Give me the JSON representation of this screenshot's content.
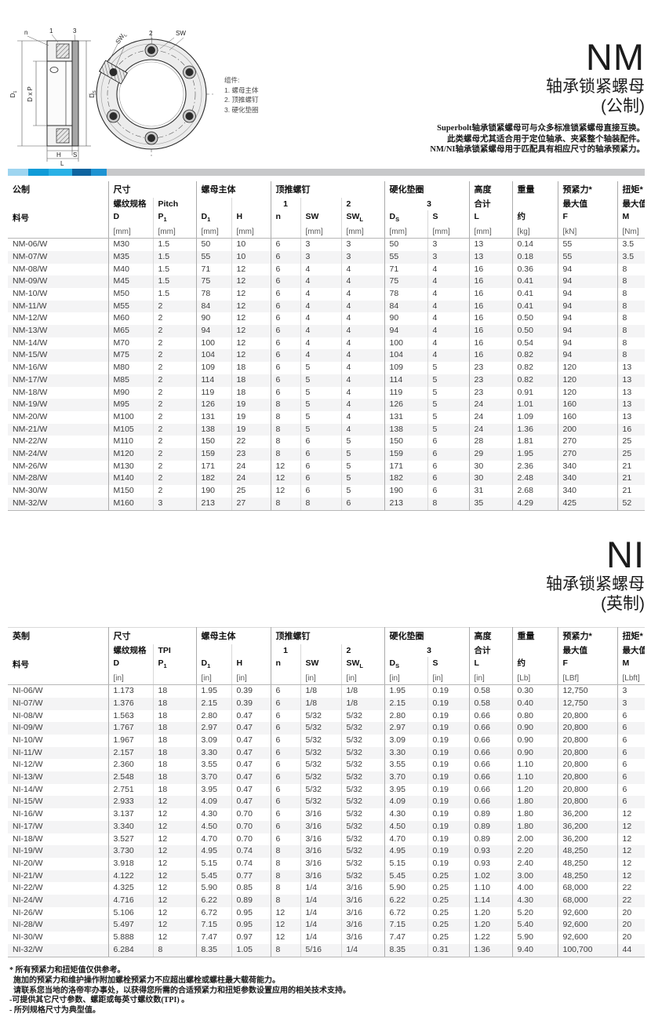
{
  "brand_bar": {
    "colors": [
      "#9ed5f0",
      "#0f9bd7",
      "#29b1e6",
      "#0e649f",
      "#1e93d2"
    ],
    "gray": "#c7c8ca"
  },
  "drawing": {
    "legend_title": "组件:",
    "legend_items": [
      "1. 螺母主体",
      "2. 顶推螺钉",
      "3. 硬化垫圈"
    ],
    "labels": {
      "n": "n",
      "one": "1",
      "three": "3",
      "d1": {
        "b": "D",
        "s": "1"
      },
      "dxp": "D x P",
      "ds": {
        "b": "D",
        "s": "S"
      },
      "h": "H",
      "s": "S",
      "l": "L",
      "swl": {
        "b": "SW",
        "s": "L"
      },
      "two": "2",
      "sw": "SW"
    }
  },
  "nm": {
    "title": "NM",
    "subtitle": "轴承锁紧螺母",
    "variant": "(公制)",
    "description": [
      "Superbolt轴承锁紧螺母可与众多标准锁紧螺母直接互换。",
      "此类螺母尤其适合用于定位轴承、夹紧整个轴装配件。",
      "NM/NI轴承锁紧螺母用于匹配具有相应尺寸的轴承预紧力。"
    ],
    "table": {
      "corner": "公制",
      "part_label": "料号",
      "groups": {
        "size": "尺寸",
        "body": "螺母主体",
        "jack": "顶推螺钉",
        "washer": "硬化垫圈",
        "height": "高度",
        "weight": "重量",
        "preload": "预紧力*",
        "torque": "扭矩*"
      },
      "sub": {
        "thread": "螺纹规格",
        "pitch": "Pitch",
        "one": "1",
        "two": "2",
        "three": "3",
        "total": "合计",
        "max_f": "最大值",
        "max_m": "最大值"
      },
      "symbols": {
        "D": {
          "b": "D",
          "s": ""
        },
        "P": {
          "b": "P",
          "s": "1"
        },
        "D1": {
          "b": "D",
          "s": "1"
        },
        "H": {
          "b": "H",
          "s": ""
        },
        "n": {
          "b": "n",
          "s": ""
        },
        "SW": {
          "b": "SW",
          "s": ""
        },
        "SWL": {
          "b": "SW",
          "s": "L"
        },
        "DS": {
          "b": "D",
          "s": "S"
        },
        "S": {
          "b": "S",
          "s": ""
        },
        "L": {
          "b": "L",
          "s": ""
        },
        "approx": {
          "b": "约",
          "s": ""
        },
        "F": {
          "b": "F",
          "s": ""
        },
        "M": {
          "b": "M",
          "s": ""
        }
      },
      "units": [
        "",
        "[mm]",
        "[mm]",
        "[mm]",
        "[mm]",
        "",
        "[mm]",
        "[mm]",
        "[mm]",
        "[mm]",
        "[mm]",
        "[kg]",
        "[kN]",
        "[Nm]"
      ],
      "rows": [
        [
          "NM-06/W",
          "M30",
          "1.5",
          "50",
          "10",
          "6",
          "3",
          "3",
          "50",
          "3",
          "13",
          "0.14",
          "55",
          "3.5"
        ],
        [
          "NM-07/W",
          "M35",
          "1.5",
          "55",
          "10",
          "6",
          "3",
          "3",
          "55",
          "3",
          "13",
          "0.18",
          "55",
          "3.5"
        ],
        [
          "NM-08/W",
          "M40",
          "1.5",
          "71",
          "12",
          "6",
          "4",
          "4",
          "71",
          "4",
          "16",
          "0.36",
          "94",
          "8"
        ],
        [
          "NM-09/W",
          "M45",
          "1.5",
          "75",
          "12",
          "6",
          "4",
          "4",
          "75",
          "4",
          "16",
          "0.41",
          "94",
          "8"
        ],
        [
          "NM-10/W",
          "M50",
          "1.5",
          "78",
          "12",
          "6",
          "4",
          "4",
          "78",
          "4",
          "16",
          "0.41",
          "94",
          "8"
        ],
        [
          "NM-11/W",
          "M55",
          "2",
          "84",
          "12",
          "6",
          "4",
          "4",
          "84",
          "4",
          "16",
          "0.41",
          "94",
          "8"
        ],
        [
          "NM-12/W",
          "M60",
          "2",
          "90",
          "12",
          "6",
          "4",
          "4",
          "90",
          "4",
          "16",
          "0.50",
          "94",
          "8"
        ],
        [
          "NM-13/W",
          "M65",
          "2",
          "94",
          "12",
          "6",
          "4",
          "4",
          "94",
          "4",
          "16",
          "0.50",
          "94",
          "8"
        ],
        [
          "NM-14/W",
          "M70",
          "2",
          "100",
          "12",
          "6",
          "4",
          "4",
          "100",
          "4",
          "16",
          "0.54",
          "94",
          "8"
        ],
        [
          "NM-15/W",
          "M75",
          "2",
          "104",
          "12",
          "6",
          "4",
          "4",
          "104",
          "4",
          "16",
          "0.82",
          "94",
          "8"
        ],
        [
          "NM-16/W",
          "M80",
          "2",
          "109",
          "18",
          "6",
          "5",
          "4",
          "109",
          "5",
          "23",
          "0.82",
          "120",
          "13"
        ],
        [
          "NM-17/W",
          "M85",
          "2",
          "114",
          "18",
          "6",
          "5",
          "4",
          "114",
          "5",
          "23",
          "0.82",
          "120",
          "13"
        ],
        [
          "NM-18/W",
          "M90",
          "2",
          "119",
          "18",
          "6",
          "5",
          "4",
          "119",
          "5",
          "23",
          "0.91",
          "120",
          "13"
        ],
        [
          "NM-19/W",
          "M95",
          "2",
          "126",
          "19",
          "8",
          "5",
          "4",
          "126",
          "5",
          "24",
          "1.01",
          "160",
          "13"
        ],
        [
          "NM-20/W",
          "M100",
          "2",
          "131",
          "19",
          "8",
          "5",
          "4",
          "131",
          "5",
          "24",
          "1.09",
          "160",
          "13"
        ],
        [
          "NM-21/W",
          "M105",
          "2",
          "138",
          "19",
          "8",
          "5",
          "4",
          "138",
          "5",
          "24",
          "1.36",
          "200",
          "16"
        ],
        [
          "NM-22/W",
          "M110",
          "2",
          "150",
          "22",
          "8",
          "6",
          "5",
          "150",
          "6",
          "28",
          "1.81",
          "270",
          "25"
        ],
        [
          "NM-24/W",
          "M120",
          "2",
          "159",
          "23",
          "8",
          "6",
          "5",
          "159",
          "6",
          "29",
          "1.95",
          "270",
          "25"
        ],
        [
          "NM-26/W",
          "M130",
          "2",
          "171",
          "24",
          "12",
          "6",
          "5",
          "171",
          "6",
          "30",
          "2.36",
          "340",
          "21"
        ],
        [
          "NM-28/W",
          "M140",
          "2",
          "182",
          "24",
          "12",
          "6",
          "5",
          "182",
          "6",
          "30",
          "2.48",
          "340",
          "21"
        ],
        [
          "NM-30/W",
          "M150",
          "2",
          "190",
          "25",
          "12",
          "6",
          "5",
          "190",
          "6",
          "31",
          "2.68",
          "340",
          "21"
        ],
        [
          "NM-32/W",
          "M160",
          "3",
          "213",
          "27",
          "8",
          "8",
          "6",
          "213",
          "8",
          "35",
          "4.29",
          "425",
          "52"
        ]
      ]
    }
  },
  "ni": {
    "title": "NI",
    "subtitle": "轴承锁紧螺母",
    "variant": "(英制)",
    "table": {
      "corner": "英制",
      "part_label": "料号",
      "groups": {
        "size": "尺寸",
        "body": "螺母主体",
        "jack": "顶推螺钉",
        "washer": "硬化垫圈",
        "height": "高度",
        "weight": "重量",
        "preload": "预紧力*",
        "torque": "扭矩*"
      },
      "sub": {
        "thread": "螺纹规格",
        "pitch": "TPI",
        "one": "1",
        "two": "2",
        "three": "3",
        "total": "合计",
        "max_f": "最大值",
        "max_m": "最大值"
      },
      "symbols": {
        "D": {
          "b": "D",
          "s": ""
        },
        "P": {
          "b": "P",
          "s": "1"
        },
        "D1": {
          "b": "D",
          "s": "1"
        },
        "H": {
          "b": "H",
          "s": ""
        },
        "n": {
          "b": "n",
          "s": ""
        },
        "SW": {
          "b": "SW",
          "s": ""
        },
        "SWL": {
          "b": "SW",
          "s": "L"
        },
        "DS": {
          "b": "D",
          "s": "S"
        },
        "S": {
          "b": "S",
          "s": ""
        },
        "L": {
          "b": "L",
          "s": ""
        },
        "approx": {
          "b": "约",
          "s": ""
        },
        "F": {
          "b": "F",
          "s": ""
        },
        "M": {
          "b": "M",
          "s": ""
        }
      },
      "units": [
        "",
        "[in]",
        "",
        "[in]",
        "[in]",
        "",
        "[in]",
        "[in]",
        "[in]",
        "[in]",
        "[in]",
        "[Lb]",
        "[LBf]",
        "[Lbft]"
      ],
      "rows": [
        [
          "NI-06/W",
          "1.173",
          "18",
          "1.95",
          "0.39",
          "6",
          "1/8",
          "1/8",
          "1.95",
          "0.19",
          "0.58",
          "0.30",
          "12,750",
          "3"
        ],
        [
          "NI-07/W",
          "1.376",
          "18",
          "2.15",
          "0.39",
          "6",
          "1/8",
          "1/8",
          "2.15",
          "0.19",
          "0.58",
          "0.40",
          "12,750",
          "3"
        ],
        [
          "NI-08/W",
          "1.563",
          "18",
          "2.80",
          "0.47",
          "6",
          "5/32",
          "5/32",
          "2.80",
          "0.19",
          "0.66",
          "0.80",
          "20,800",
          "6"
        ],
        [
          "NI-09/W",
          "1.767",
          "18",
          "2.97",
          "0.47",
          "6",
          "5/32",
          "5/32",
          "2.97",
          "0.19",
          "0.66",
          "0.90",
          "20,800",
          "6"
        ],
        [
          "NI-10/W",
          "1.967",
          "18",
          "3.09",
          "0.47",
          "6",
          "5/32",
          "5/32",
          "3.09",
          "0.19",
          "0.66",
          "0.90",
          "20,800",
          "6"
        ],
        [
          "NI-11/W",
          "2.157",
          "18",
          "3.30",
          "0.47",
          "6",
          "5/32",
          "5/32",
          "3.30",
          "0.19",
          "0.66",
          "0.90",
          "20,800",
          "6"
        ],
        [
          "NI-12/W",
          "2.360",
          "18",
          "3.55",
          "0.47",
          "6",
          "5/32",
          "5/32",
          "3.55",
          "0.19",
          "0.66",
          "1.10",
          "20,800",
          "6"
        ],
        [
          "NI-13/W",
          "2.548",
          "18",
          "3.70",
          "0.47",
          "6",
          "5/32",
          "5/32",
          "3.70",
          "0.19",
          "0.66",
          "1.10",
          "20,800",
          "6"
        ],
        [
          "NI-14/W",
          "2.751",
          "18",
          "3.95",
          "0.47",
          "6",
          "5/32",
          "5/32",
          "3.95",
          "0.19",
          "0.66",
          "1.20",
          "20,800",
          "6"
        ],
        [
          "NI-15/W",
          "2.933",
          "12",
          "4.09",
          "0.47",
          "6",
          "5/32",
          "5/32",
          "4.09",
          "0.19",
          "0.66",
          "1.80",
          "20,800",
          "6"
        ],
        [
          "NI-16/W",
          "3.137",
          "12",
          "4.30",
          "0.70",
          "6",
          "3/16",
          "5/32",
          "4.30",
          "0.19",
          "0.89",
          "1.80",
          "36,200",
          "12"
        ],
        [
          "NI-17/W",
          "3.340",
          "12",
          "4.50",
          "0.70",
          "6",
          "3/16",
          "5/32",
          "4.50",
          "0.19",
          "0.89",
          "1.80",
          "36,200",
          "12"
        ],
        [
          "NI-18/W",
          "3.527",
          "12",
          "4.70",
          "0.70",
          "6",
          "3/16",
          "5/32",
          "4.70",
          "0.19",
          "0.89",
          "2.00",
          "36,200",
          "12"
        ],
        [
          "NI-19/W",
          "3.730",
          "12",
          "4.95",
          "0.74",
          "8",
          "3/16",
          "5/32",
          "4.95",
          "0.19",
          "0.93",
          "2.20",
          "48,250",
          "12"
        ],
        [
          "NI-20/W",
          "3.918",
          "12",
          "5.15",
          "0.74",
          "8",
          "3/16",
          "5/32",
          "5.15",
          "0.19",
          "0.93",
          "2.40",
          "48,250",
          "12"
        ],
        [
          "NI-21/W",
          "4.122",
          "12",
          "5.45",
          "0.77",
          "8",
          "3/16",
          "5/32",
          "5.45",
          "0.25",
          "1.02",
          "3.00",
          "48,250",
          "12"
        ],
        [
          "NI-22/W",
          "4.325",
          "12",
          "5.90",
          "0.85",
          "8",
          "1/4",
          "3/16",
          "5.90",
          "0.25",
          "1.10",
          "4.00",
          "68,000",
          "22"
        ],
        [
          "NI-24/W",
          "4.716",
          "12",
          "6.22",
          "0.89",
          "8",
          "1/4",
          "3/16",
          "6.22",
          "0.25",
          "1.14",
          "4.30",
          "68,000",
          "22"
        ],
        [
          "NI-26/W",
          "5.106",
          "12",
          "6.72",
          "0.95",
          "12",
          "1/4",
          "3/16",
          "6.72",
          "0.25",
          "1.20",
          "5.20",
          "92,600",
          "20"
        ],
        [
          "NI-28/W",
          "5.497",
          "12",
          "7.15",
          "0.95",
          "12",
          "1/4",
          "3/16",
          "7.15",
          "0.25",
          "1.20",
          "5.40",
          "92,600",
          "20"
        ],
        [
          "NI-30/W",
          "5.888",
          "12",
          "7.47",
          "0.97",
          "12",
          "1/4",
          "3/16",
          "7.47",
          "0.25",
          "1.22",
          "5.90",
          "92,600",
          "20"
        ],
        [
          "NI-32/W",
          "6.284",
          "8",
          "8.35",
          "1.05",
          "8",
          "5/16",
          "1/4",
          "8.35",
          "0.31",
          "1.36",
          "9.40",
          "100,700",
          "44"
        ]
      ]
    }
  },
  "footnotes": [
    "* 所有预紧力和扭矩值仅供参考。",
    "  施加的预紧力和维护操作附加螺栓预紧力不应超出螺栓或螺柱最大载荷能力。",
    "  请联系您当地的洛帝牢办事处，以获得您所需的合适预紧力和扭矩参数设置应用的相关技术支持。",
    "-可提供其它尺寸参数、螺距或每英寸螺纹数(TPI) 。",
    "- 所列规格尺寸为典型值。"
  ]
}
